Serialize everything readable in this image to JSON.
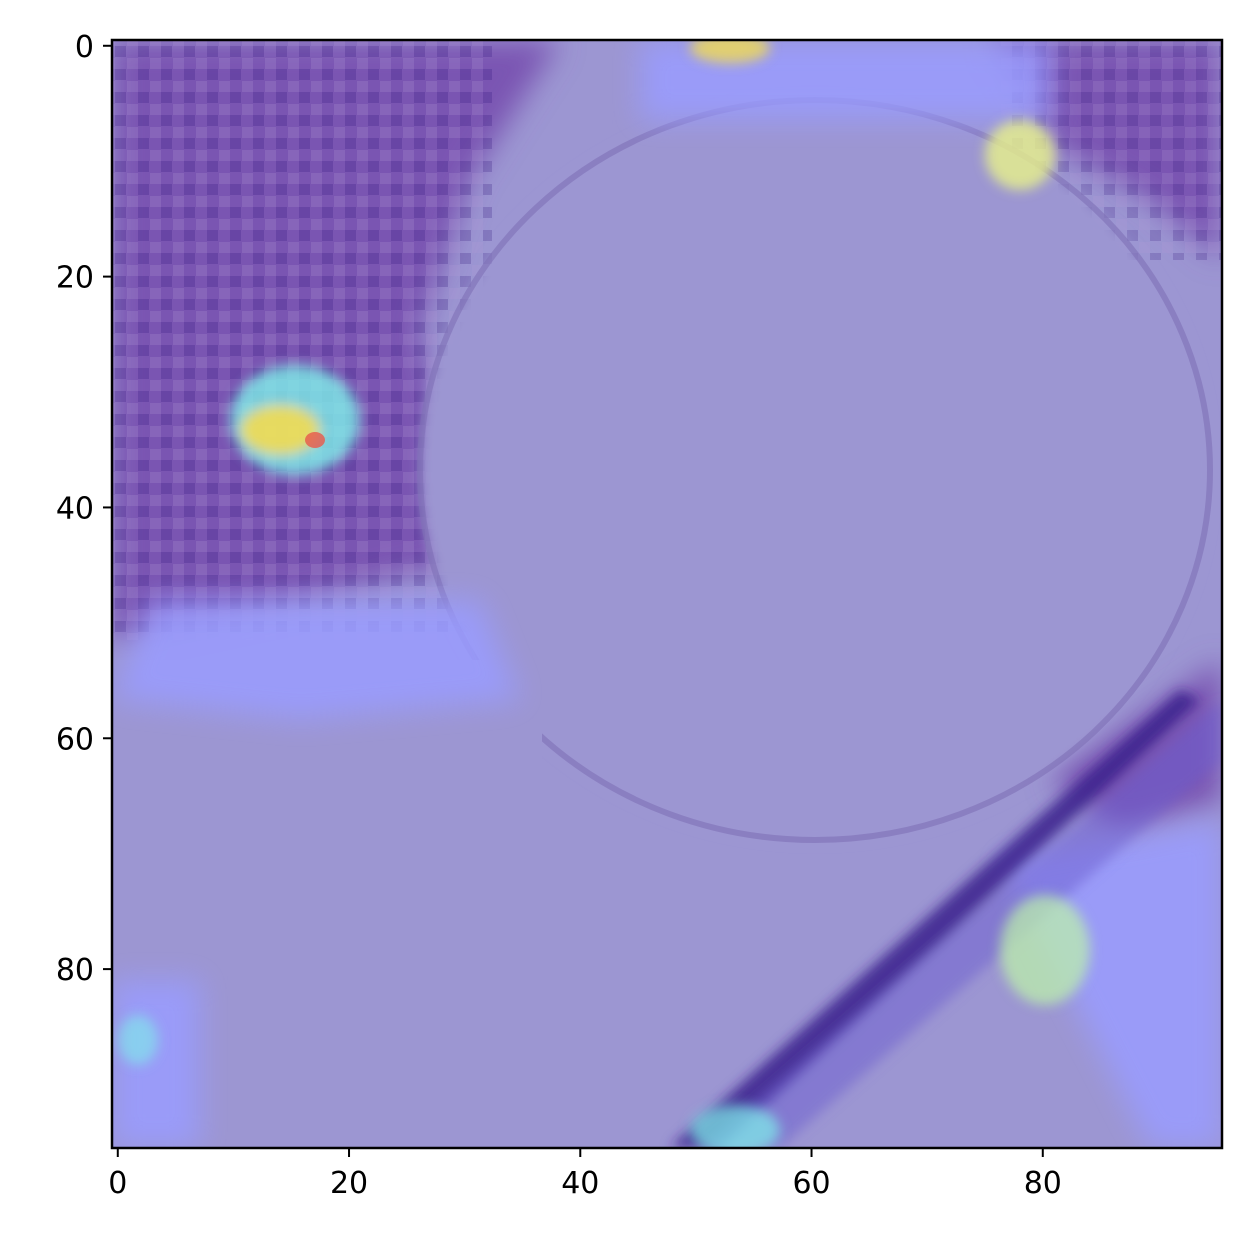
{
  "chart_data": {
    "type": "heatmap",
    "title": "",
    "xlabel": "",
    "ylabel": "",
    "image_size": [
      96,
      96
    ],
    "xlim": [
      -0.5,
      95.5
    ],
    "ylim": [
      95.5,
      -0.5
    ],
    "x_ticks": [
      0,
      20,
      40,
      60,
      80
    ],
    "y_ticks": [
      0,
      20,
      40,
      60,
      80
    ],
    "x_tick_labels": [
      "0",
      "20",
      "40",
      "60",
      "80"
    ],
    "y_tick_labels": [
      "0",
      "20",
      "40",
      "60",
      "80"
    ],
    "grid": false,
    "colormap": "jet overlay on grayscale image",
    "colors": {
      "background_tone": "#9c96d2",
      "dark_texture": "#7a54b2",
      "shadow_texture": "#3a1c8c",
      "bright_blue": "#9a9cff",
      "cyan_hot": "#7ef0ea",
      "yellow_hot": "#f2dc52",
      "red_hot": "#e8584a"
    }
  }
}
